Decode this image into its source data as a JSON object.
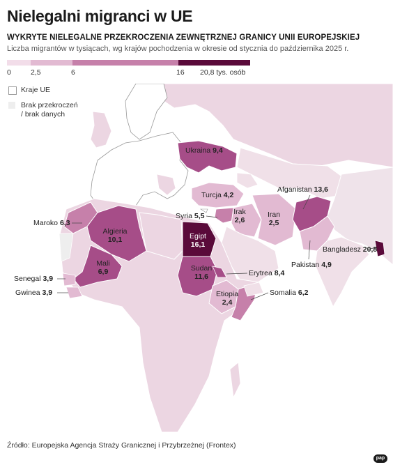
{
  "title": "Nielegalni migranci w UE",
  "subtitle": "WYKRYTE NIELEGALNE PRZEKROCZENIA ZEWNĘTRZNEJ GRANICY UNII EUROPEJSKIEJ",
  "description": "Liczba migrantów w tysiącach, wg krajów pochodzenia w okresie od stycznia do października 2025 r.",
  "scale": {
    "ticks": [
      "0",
      "2,5",
      "6",
      "16",
      "20,8 tys. osób"
    ],
    "colors": [
      "#f2dde9",
      "#e2bad2",
      "#c680aa",
      "#a64d88",
      "#5a0a3a"
    ]
  },
  "legend": {
    "eu_label": "Kraje UE",
    "nodata_label_1": "Brak przekroczeń",
    "nodata_label_2": "/ brak danych",
    "eu_color": "#ffffff",
    "nodata_color": "#eeeeee"
  },
  "countries": [
    {
      "name": "Ukraina",
      "value": "9,4"
    },
    {
      "name": "Turcja",
      "value": "4,2"
    },
    {
      "name": "Afganistan",
      "value": "13,6"
    },
    {
      "name": "Maroko",
      "value": "6,3"
    },
    {
      "name": "Algieria",
      "value": "10,1"
    },
    {
      "name": "Syria",
      "value": "5,5"
    },
    {
      "name": "Irak",
      "value": "2,6"
    },
    {
      "name": "Iran",
      "value": "2,5"
    },
    {
      "name": "Egipt",
      "value": "16,1"
    },
    {
      "name": "Mali",
      "value": "6,9"
    },
    {
      "name": "Bangladesz",
      "value": "20,8"
    },
    {
      "name": "Pakistan",
      "value": "4,9"
    },
    {
      "name": "Sudan",
      "value": "11,6"
    },
    {
      "name": "Erytrea",
      "value": "8,4"
    },
    {
      "name": "Senegal",
      "value": "3,9"
    },
    {
      "name": "Gwinea",
      "value": "3,9"
    },
    {
      "name": "Etiopia",
      "value": "2,4"
    },
    {
      "name": "Somalia",
      "value": "6,2"
    }
  ],
  "source": "Źródło: Europejska Agencja Straży Granicznej i Przybrzeżnej (Frontex)",
  "logo": "pap"
}
